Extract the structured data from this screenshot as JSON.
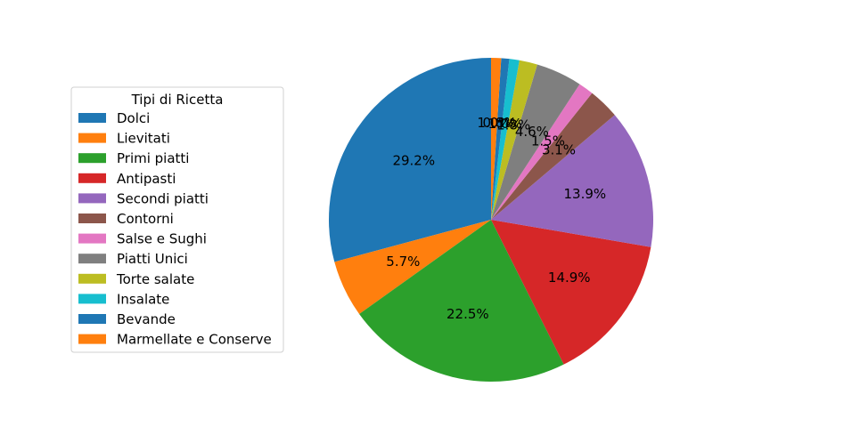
{
  "chart_data": {
    "type": "pie",
    "legend_title": "Tipi di Ricetta",
    "legend_position": "left",
    "start_angle_deg": 90,
    "direction": "clockwise",
    "slices": [
      {
        "label": "Dolci",
        "value": 29.2,
        "pct_label": "29.2%",
        "color": "#1f77b4"
      },
      {
        "label": "Lievitati",
        "value": 5.7,
        "pct_label": "5.7%",
        "color": "#ff7f0e"
      },
      {
        "label": "Primi piatti",
        "value": 22.5,
        "pct_label": "22.5%",
        "color": "#2ca02c"
      },
      {
        "label": "Antipasti",
        "value": 14.9,
        "pct_label": "14.9%",
        "color": "#d62728"
      },
      {
        "label": "Secondi piatti",
        "value": 13.9,
        "pct_label": "13.9%",
        "color": "#9467bd"
      },
      {
        "label": "Contorni",
        "value": 3.1,
        "pct_label": "3.1%",
        "color": "#8c564b"
      },
      {
        "label": "Salse e Sughi",
        "value": 1.5,
        "pct_label": "1.5%",
        "color": "#e377c2"
      },
      {
        "label": "Piatti Unici",
        "value": 4.6,
        "pct_label": "4.6%",
        "color": "#7f7f7f"
      },
      {
        "label": "Torte salate",
        "value": 1.8,
        "pct_label": "1.8%",
        "color": "#bcbd22"
      },
      {
        "label": "Insalate",
        "value": 1.0,
        "pct_label": "1.0%",
        "color": "#17becf"
      },
      {
        "label": "Bevande",
        "value": 0.8,
        "pct_label": "0.8%",
        "color": "#1f77b4"
      },
      {
        "label": "Marmellate e Conserve",
        "value": 1.0,
        "pct_label": "1.0%",
        "color": "#ff7f0e"
      }
    ]
  }
}
